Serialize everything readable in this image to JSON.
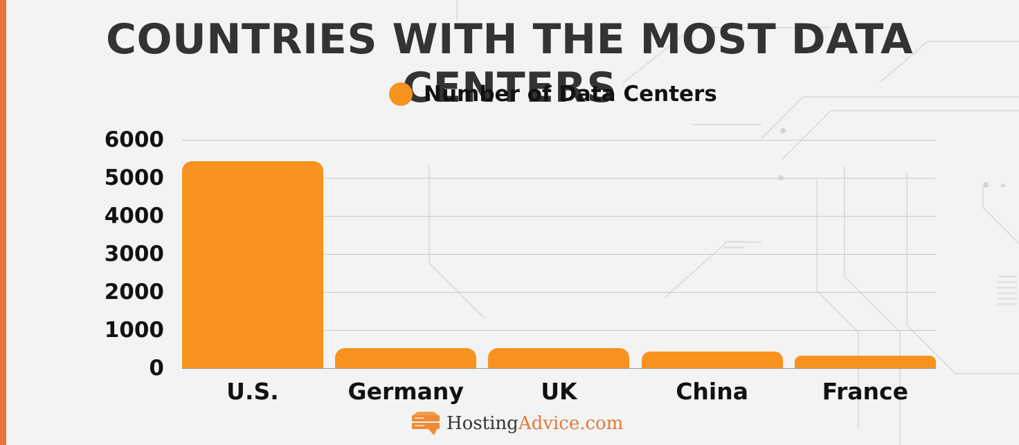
{
  "title": "COUNTRIES WITH THE MOST DATA CENTERS",
  "legend": {
    "label": "Number of Data Centers",
    "color": "#f7931e"
  },
  "brand": {
    "part1": "Hosting",
    "part2": "Advice.com"
  },
  "colors": {
    "bar": "#f7931e",
    "accent_stripe": "#e8743b",
    "background": "#f3f3f3",
    "title": "#333333"
  },
  "chart_data": {
    "type": "bar",
    "title": "COUNTRIES WITH THE MOST DATA CENTERS",
    "xlabel": "",
    "ylabel": "",
    "categories": [
      "U.S.",
      "Germany",
      "UK",
      "China",
      "France"
    ],
    "series": [
      {
        "name": "Number of Data Centers",
        "values": [
          5430,
          530,
          520,
          440,
          320
        ]
      }
    ],
    "values_note": "Values estimated from bar heights; no data labels in image",
    "yticks": [
      0,
      1000,
      2000,
      3000,
      4000,
      5000,
      6000
    ],
    "ytick_labels": [
      "0",
      "1000",
      "2000",
      "3000",
      "4000",
      "5000",
      "6000"
    ],
    "ylim": [
      0,
      6000
    ],
    "grid": true,
    "legend_position": "top"
  }
}
